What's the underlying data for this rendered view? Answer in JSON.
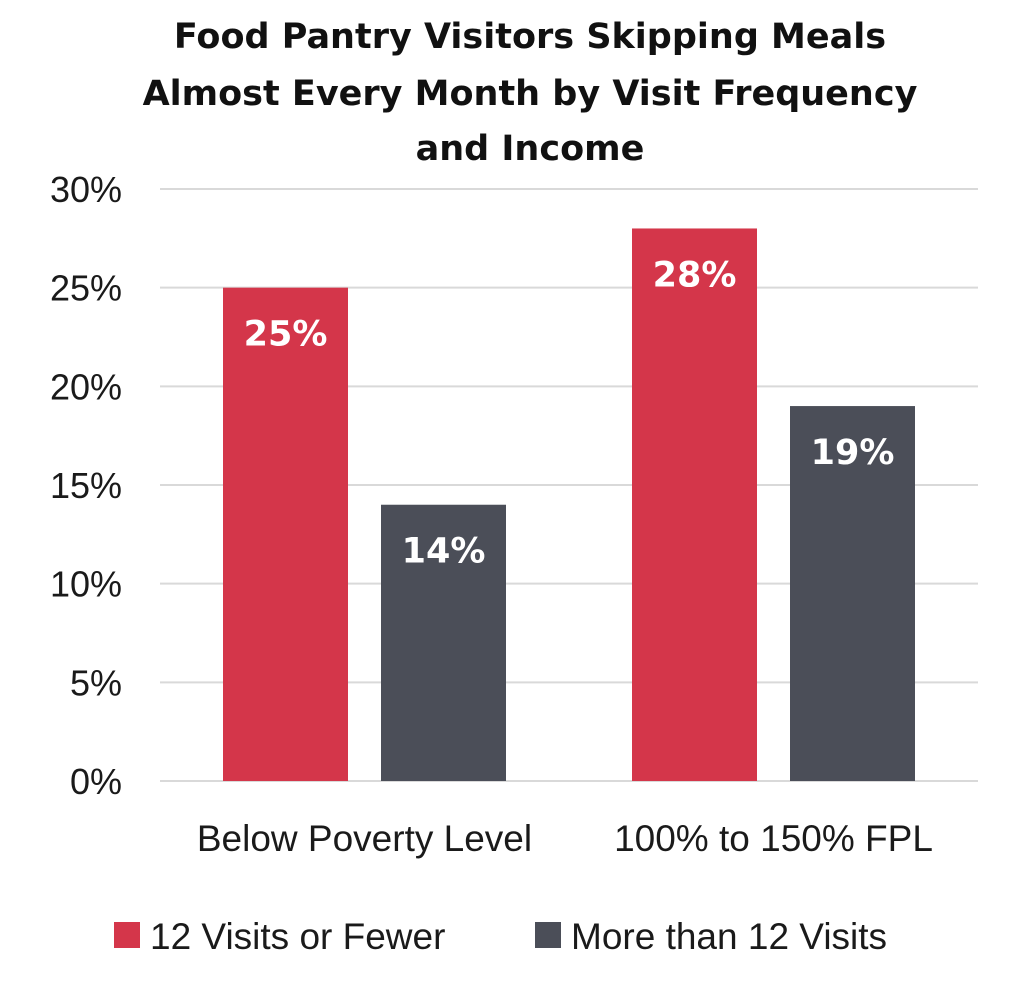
{
  "chart_data": {
    "type": "bar",
    "title_lines": [
      "Food Pantry Visitors Skipping Meals",
      "Almost Every Month by Visit Frequency",
      "and Income"
    ],
    "categories": [
      "Below Poverty Level",
      "100% to 150% FPL"
    ],
    "series": [
      {
        "name": "12 Visits or Fewer",
        "color": "#d4364a",
        "values": [
          25,
          28
        ],
        "labels": [
          "25%",
          "28%"
        ]
      },
      {
        "name": "More than 12 Visits",
        "color": "#4b4e58",
        "values": [
          14,
          19
        ],
        "labels": [
          "14%",
          "19%"
        ]
      }
    ],
    "ylim": [
      0,
      30
    ],
    "yticks": [
      0,
      5,
      10,
      15,
      20,
      25,
      30
    ],
    "ytick_labels": [
      "0%",
      "5%",
      "10%",
      "15%",
      "20%",
      "25%",
      "30%"
    ],
    "grid": true,
    "legend_position": "bottom"
  }
}
